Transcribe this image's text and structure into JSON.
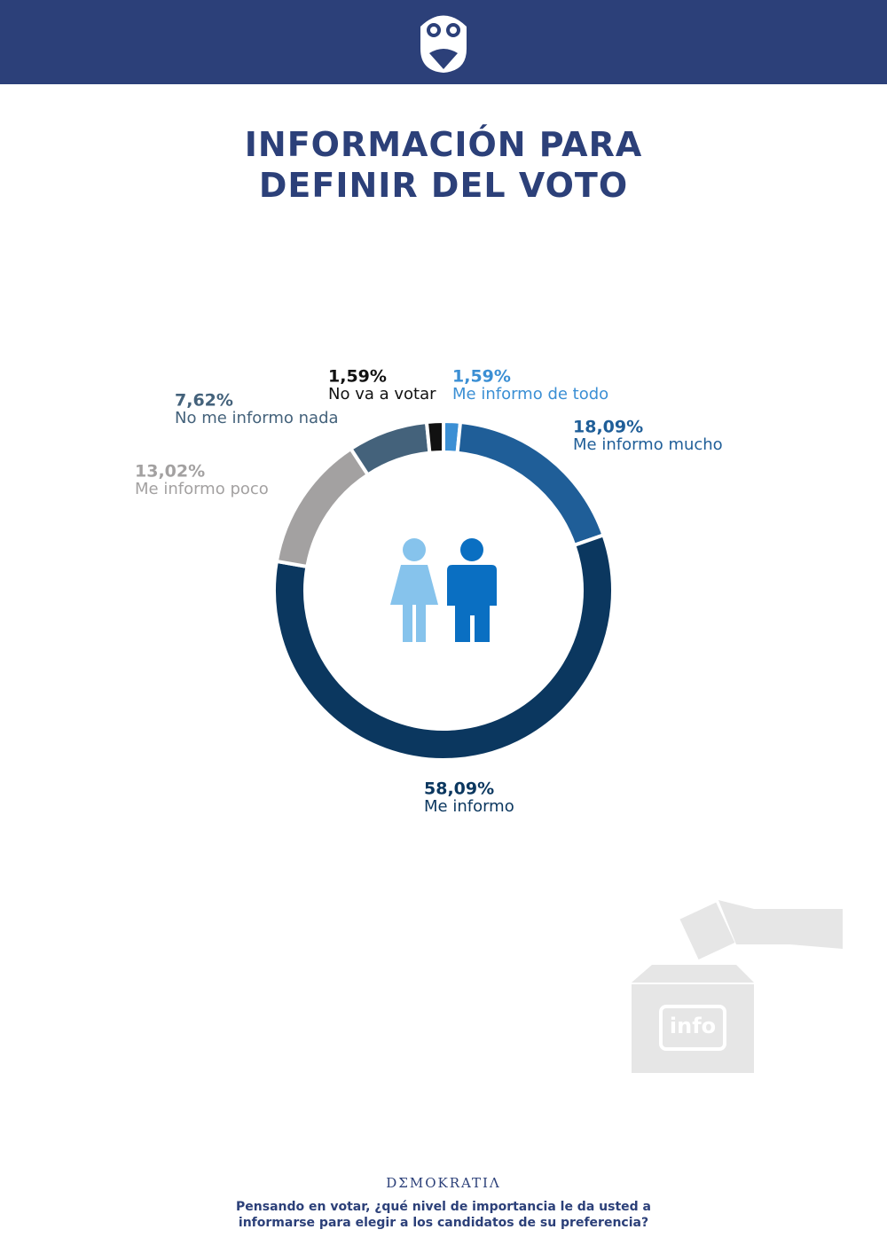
{
  "chart_data": {
    "type": "pie",
    "title": "INFORMACIÓN PARA DEFINIR DEL VOTO",
    "categories": [
      "Me informo de todo",
      "Me informo mucho",
      "Me informo",
      "Me informo poco",
      "No me informo nada",
      "No va a votar"
    ],
    "values": [
      1.59,
      18.09,
      58.09,
      13.02,
      7.62,
      1.59
    ],
    "value_labels": [
      "1,59%",
      "18,09%",
      "58,09%",
      "13,02%",
      "7,62%",
      "1,59%"
    ],
    "colors": [
      "#3b8fd4",
      "#1f5e98",
      "#0b375f",
      "#a3a1a1",
      "#44627b",
      "#111111"
    ],
    "illustration_text": "info",
    "brand": "DΣMOKRATIΛ",
    "question": "Pensando en votar, ¿qué nivel de importancia le da usted a informarse para elegir a los candidatos de su preferencia?"
  }
}
